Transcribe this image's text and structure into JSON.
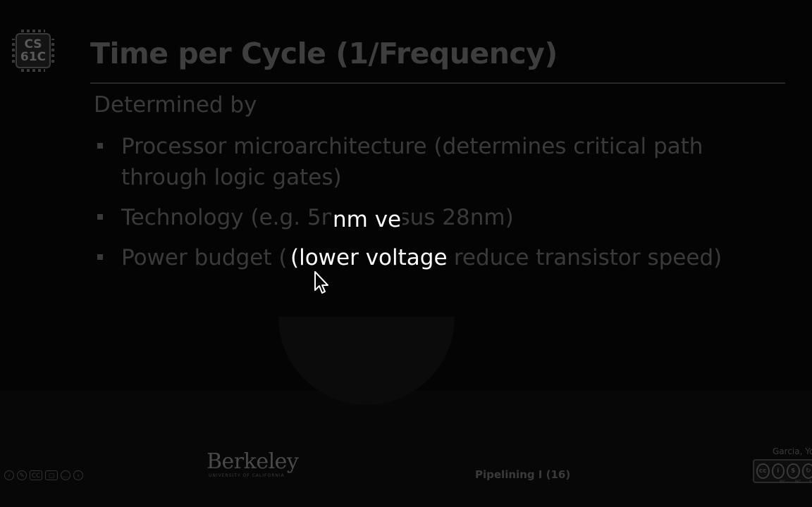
{
  "slide": {
    "logo_text_1": "CS",
    "logo_text_2": "61C",
    "title": "Time per Cycle (1/Frequency)",
    "intro": "Determined by",
    "bullets": [
      "Processor microarchitecture (determines critical path through logic gates)",
      "Technology (e.g. 5nm versus 28nm)",
      "Power budget (lower voltages reduce transistor speed)"
    ],
    "highlight_1": "nm ve",
    "highlight_2": "(lower voltage"
  },
  "footer": {
    "nav_icons": [
      "prev-icon",
      "pen-icon",
      "cc-caption-icon",
      "slides-icon",
      "options-icon",
      "next-icon"
    ],
    "nav_glyphs": [
      "‹",
      "✎",
      "CC",
      "▢",
      "…",
      "›"
    ],
    "institution": "Berkeley",
    "institution_sub": "UNIVERSITY OF CALIFORNIA",
    "section": "Pipelining I (16)",
    "author": "Garcia, Yo",
    "license_labels": [
      "BY",
      "NC",
      "SA"
    ]
  },
  "colors": {
    "background": "#040404",
    "dim_text": "#3a3a3a",
    "revealed_text": "#ffffff"
  }
}
